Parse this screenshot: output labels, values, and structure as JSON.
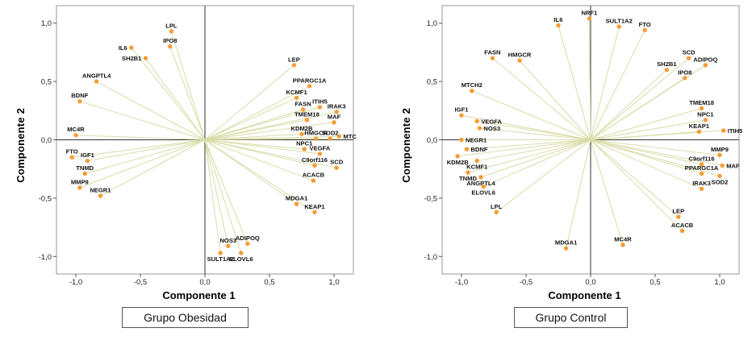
{
  "chart_data": [
    {
      "type": "scatter",
      "group_label": "Grupo Obesidad",
      "xlabel": "Componente 1",
      "ylabel": "Componente 2",
      "xlim": [
        -1.15,
        1.15
      ],
      "ylim": [
        -1.15,
        1.15
      ],
      "xticks": [
        -1.0,
        -0.5,
        0.0,
        0.5,
        1.0
      ],
      "yticks": [
        -1.0,
        -0.5,
        0.0,
        0.5,
        1.0
      ],
      "tick_decimal": "comma",
      "point_color": "#F59C33",
      "vector_line_color": "#D9DCA8",
      "axis_cross_color": "#333333",
      "border_color": "#999999",
      "points": [
        {
          "label": "LPL",
          "x": -0.26,
          "y": 0.93
        },
        {
          "label": "IPO8",
          "x": -0.27,
          "y": 0.8
        },
        {
          "label": "IL6",
          "x": -0.57,
          "y": 0.79,
          "lp": "left"
        },
        {
          "label": "SH2B1",
          "x": -0.46,
          "y": 0.7,
          "lp": "left"
        },
        {
          "label": "LEP",
          "x": 0.69,
          "y": 0.64
        },
        {
          "label": "ANGPTL4",
          "x": -0.84,
          "y": 0.5
        },
        {
          "label": "PPARGC1A",
          "x": 0.81,
          "y": 0.46
        },
        {
          "label": "KCMF1",
          "x": 0.71,
          "y": 0.36
        },
        {
          "label": "BDNF",
          "x": -0.97,
          "y": 0.33
        },
        {
          "label": "ITIH5",
          "x": 0.89,
          "y": 0.28
        },
        {
          "label": "FASN",
          "x": 0.76,
          "y": 0.26
        },
        {
          "label": "IRAK3",
          "x": 1.02,
          "y": 0.24
        },
        {
          "label": "TMEM18",
          "x": 0.79,
          "y": 0.17
        },
        {
          "label": "MAF",
          "x": 1.0,
          "y": 0.15
        },
        {
          "label": "MC4R",
          "x": -1.0,
          "y": 0.04
        },
        {
          "label": "KDM2B",
          "x": 0.75,
          "y": 0.05
        },
        {
          "label": "HMGCR",
          "x": 0.86,
          "y": 0.01
        },
        {
          "label": "SOD2",
          "x": 0.97,
          "y": 0.01
        },
        {
          "label": "MTCH2",
          "x": 1.04,
          "y": 0.03,
          "lp": "right"
        },
        {
          "label": "NPC1",
          "x": 0.77,
          "y": -0.08
        },
        {
          "label": "VEGFA",
          "x": 0.89,
          "y": -0.12
        },
        {
          "label": "FTO",
          "x": -1.03,
          "y": -0.15
        },
        {
          "label": "IGF1",
          "x": -0.91,
          "y": -0.18
        },
        {
          "label": "C9orf116",
          "x": 0.85,
          "y": -0.22
        },
        {
          "label": "SCD",
          "x": 1.02,
          "y": -0.24
        },
        {
          "label": "TNMD",
          "x": -0.93,
          "y": -0.29
        },
        {
          "label": "ACACB",
          "x": 0.84,
          "y": -0.35
        },
        {
          "label": "MMP9",
          "x": -0.97,
          "y": -0.41
        },
        {
          "label": "NEGR1",
          "x": -0.81,
          "y": -0.48
        },
        {
          "label": "MDGA1",
          "x": 0.71,
          "y": -0.55
        },
        {
          "label": "KEAP1",
          "x": 0.85,
          "y": -0.62
        },
        {
          "label": "NOS3",
          "x": 0.18,
          "y": -0.91
        },
        {
          "label": "ADIPOQ",
          "x": 0.33,
          "y": -0.89
        },
        {
          "label": "SULT1A2",
          "x": 0.12,
          "y": -0.97,
          "lp": "below"
        },
        {
          "label": "ELOVL6",
          "x": 0.28,
          "y": -0.97,
          "lp": "below"
        }
      ]
    },
    {
      "type": "scatter",
      "group_label": "Grupo Control",
      "xlabel": "Componente 1",
      "ylabel": "Componente 2",
      "xlim": [
        -1.15,
        1.15
      ],
      "ylim": [
        -1.15,
        1.15
      ],
      "xticks": [
        -1.0,
        -0.5,
        0.0,
        0.5,
        1.0
      ],
      "yticks": [
        -1.0,
        -0.5,
        0.0,
        0.5,
        1.0
      ],
      "tick_decimal": "comma",
      "point_color": "#F59C33",
      "vector_line_color": "#D9DCA8",
      "axis_cross_color": "#333333",
      "border_color": "#999999",
      "points": [
        {
          "label": "NRF1",
          "x": -0.01,
          "y": 1.04
        },
        {
          "label": "IL6",
          "x": -0.25,
          "y": 0.98
        },
        {
          "label": "SULT1A2",
          "x": 0.22,
          "y": 0.97
        },
        {
          "label": "FTO",
          "x": 0.42,
          "y": 0.94
        },
        {
          "label": "FASN",
          "x": -0.76,
          "y": 0.7
        },
        {
          "label": "HMGCR",
          "x": -0.55,
          "y": 0.68
        },
        {
          "label": "SCD",
          "x": 0.76,
          "y": 0.7
        },
        {
          "label": "ADIPOQ",
          "x": 0.89,
          "y": 0.64
        },
        {
          "label": "SH2B1",
          "x": 0.59,
          "y": 0.6
        },
        {
          "label": "IPO8",
          "x": 0.73,
          "y": 0.53
        },
        {
          "label": "MTCH2",
          "x": -0.92,
          "y": 0.42
        },
        {
          "label": "TMEM18",
          "x": 0.86,
          "y": 0.27
        },
        {
          "label": "IGF1",
          "x": -1.0,
          "y": 0.21
        },
        {
          "label": "VEGFA",
          "x": -0.88,
          "y": 0.16,
          "lp": "right"
        },
        {
          "label": "NPC1",
          "x": 0.89,
          "y": 0.17
        },
        {
          "label": "NOS3",
          "x": -0.86,
          "y": 0.1,
          "lp": "right"
        },
        {
          "label": "KEAP1",
          "x": 0.84,
          "y": 0.07
        },
        {
          "label": "ITIH5",
          "x": 1.03,
          "y": 0.08,
          "lp": "right"
        },
        {
          "label": "NEGR1",
          "x": -1.0,
          "y": 0.0,
          "lp": "right"
        },
        {
          "label": "BDNF",
          "x": -0.96,
          "y": -0.08,
          "lp": "right"
        },
        {
          "label": "KDM2B",
          "x": -1.03,
          "y": -0.14,
          "lp": "below"
        },
        {
          "label": "KCMF1",
          "x": -0.88,
          "y": -0.18,
          "lp": "below"
        },
        {
          "label": "MMP9",
          "x": 1.0,
          "y": -0.13
        },
        {
          "label": "C9orf116",
          "x": 0.86,
          "y": -0.21
        },
        {
          "label": "MAF",
          "x": 1.02,
          "y": -0.22,
          "lp": "right"
        },
        {
          "label": "TNMD",
          "x": -0.95,
          "y": -0.28,
          "lp": "below"
        },
        {
          "label": "PPARGC1A",
          "x": 0.86,
          "y": -0.29
        },
        {
          "label": "SOD2",
          "x": 1.0,
          "y": -0.31,
          "lp": "below"
        },
        {
          "label": "ANGPTL4",
          "x": -0.85,
          "y": -0.32,
          "lp": "below"
        },
        {
          "label": "ELOVL6",
          "x": -0.83,
          "y": -0.4,
          "lp": "below"
        },
        {
          "label": "IRAK3",
          "x": 0.86,
          "y": -0.42
        },
        {
          "label": "LPL",
          "x": -0.73,
          "y": -0.62
        },
        {
          "label": "LEP",
          "x": 0.68,
          "y": -0.66
        },
        {
          "label": "ACACB",
          "x": 0.71,
          "y": -0.78
        },
        {
          "label": "MDGA1",
          "x": -0.19,
          "y": -0.93
        },
        {
          "label": "MC4R",
          "x": 0.25,
          "y": -0.9
        }
      ]
    }
  ]
}
